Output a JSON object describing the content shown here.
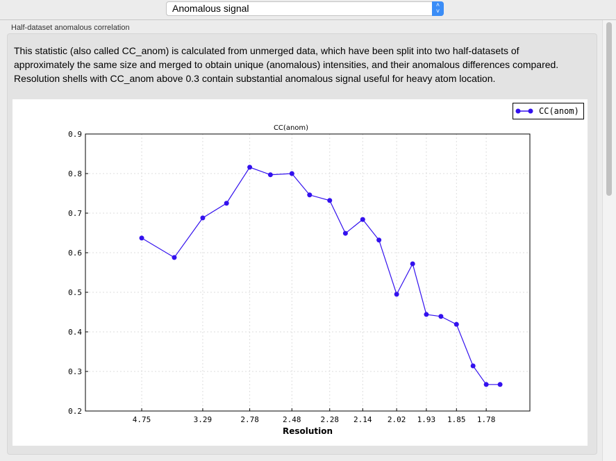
{
  "header": {
    "selected_view": "Anomalous signal"
  },
  "group": {
    "label": "Half-dataset anomalous correlation",
    "description": "This statistic (also called CC_anom) is calculated from unmerged data, which have been split into two half-datasets of approximately the same size and merged to obtain unique (anomalous) intensities, and their anomalous differences compared.  Resolution shells with CC_anom above 0.3 contain substantial anomalous signal useful for heavy atom location."
  },
  "chart_data": {
    "type": "line",
    "title": "CC(anom)",
    "xlabel": "Resolution",
    "ylabel": "",
    "x_scale": "1/d^2",
    "xlim_inv_d2": [
      0,
      0.35
    ],
    "ylim": [
      0.2,
      0.9
    ],
    "yticks": [
      "0.2",
      "0.3",
      "0.4",
      "0.5",
      "0.6",
      "0.7",
      "0.8",
      "0.9"
    ],
    "xticks": [
      "4.75",
      "3.29",
      "2.78",
      "2.48",
      "2.28",
      "2.14",
      "2.02",
      "1.93",
      "1.85",
      "1.78"
    ],
    "grid": true,
    "legend_position": "top-right",
    "series": [
      {
        "name": "CC(anom)",
        "color": "#3311ee",
        "resolution": [
          4.75,
          3.78,
          3.29,
          3.0,
          2.78,
          2.62,
          2.48,
          2.38,
          2.28,
          2.21,
          2.14,
          2.08,
          2.02,
          1.97,
          1.93,
          1.89,
          1.85,
          1.81,
          1.78,
          1.75
        ],
        "values": [
          0.637,
          0.588,
          0.688,
          0.725,
          0.816,
          0.797,
          0.8,
          0.746,
          0.732,
          0.649,
          0.684,
          0.632,
          0.495,
          0.572,
          0.444,
          0.439,
          0.419,
          0.314,
          0.267,
          0.267
        ]
      }
    ]
  }
}
